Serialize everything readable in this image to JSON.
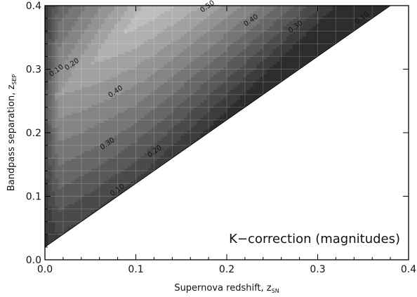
{
  "chart_data": {
    "type": "heatmap",
    "subtype": "filled-contour",
    "annotation": "K−correction (magnitudes)",
    "xlabel": "Supernova redshift, z",
    "xlabel_sub": "SN",
    "ylabel": "Bandpass separation, z",
    "ylabel_sub": "SEP",
    "xlim": [
      0.0,
      0.4
    ],
    "ylim": [
      0.0,
      0.4
    ],
    "xticks": [
      "0.0",
      "0.1",
      "0.2",
      "0.3",
      "0.4"
    ],
    "yticks": [
      "0.0",
      "0.1",
      "0.2",
      "0.3",
      "0.4"
    ],
    "grid": true,
    "colormap": "grayscale (dark = low, light = high)",
    "valid_region": "z_SEP >= 0.02 + z_SN",
    "contour_levels": [
      0.0,
      0.05,
      0.1,
      0.15,
      0.2,
      0.25,
      0.3,
      0.35,
      0.4,
      0.45,
      0.5,
      0.55
    ],
    "contour_labels": [
      {
        "text": "0.10",
        "x": 0.014,
        "y": 0.295
      },
      {
        "text": "0.20",
        "x": 0.031,
        "y": 0.305
      },
      {
        "text": "0.40",
        "x": 0.079,
        "y": 0.262
      },
      {
        "text": "0.30",
        "x": 0.07,
        "y": 0.18
      },
      {
        "text": "0.20",
        "x": 0.122,
        "y": 0.168
      },
      {
        "text": "0.10",
        "x": 0.081,
        "y": 0.107
      },
      {
        "text": "0.50",
        "x": 0.18,
        "y": 0.396
      },
      {
        "text": "0.40",
        "x": 0.228,
        "y": 0.374
      },
      {
        "text": "0.30",
        "x": 0.277,
        "y": 0.364
      },
      {
        "text": "0.10",
        "x": 0.35,
        "y": 0.378
      }
    ]
  }
}
